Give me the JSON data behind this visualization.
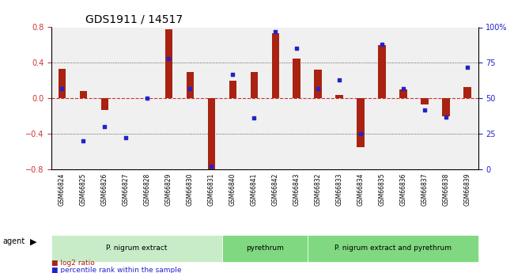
{
  "title": "GDS1911 / 14517",
  "samples": [
    "GSM66824",
    "GSM66825",
    "GSM66826",
    "GSM66827",
    "GSM66828",
    "GSM66829",
    "GSM66830",
    "GSM66831",
    "GSM66840",
    "GSM66841",
    "GSM66842",
    "GSM66843",
    "GSM66832",
    "GSM66833",
    "GSM66834",
    "GSM66835",
    "GSM66836",
    "GSM66837",
    "GSM66838",
    "GSM66839"
  ],
  "log2_ratio": [
    0.33,
    0.08,
    -0.13,
    0.0,
    0.0,
    0.78,
    0.3,
    -0.85,
    0.2,
    0.3,
    0.73,
    0.45,
    0.32,
    0.04,
    -0.55,
    0.6,
    0.1,
    -0.07,
    -0.2,
    0.13
  ],
  "percentile": [
    57,
    20,
    30,
    22,
    50,
    78,
    57,
    2,
    67,
    36,
    97,
    85,
    57,
    63,
    25,
    88,
    57,
    42,
    37,
    72
  ],
  "groups": [
    {
      "label": "P. nigrum extract",
      "start": 0,
      "end": 8,
      "color": "#b3e6b3"
    },
    {
      "label": "pyrethrum",
      "start": 8,
      "end": 12,
      "color": "#80d980"
    },
    {
      "label": "P. nigrum extract and pyrethrum",
      "start": 12,
      "end": 20,
      "color": "#80d980"
    }
  ],
  "ylim_left": [
    -0.8,
    0.8
  ],
  "ylim_right": [
    0,
    100
  ],
  "bar_color": "#aa2211",
  "dot_color": "#2222cc",
  "zero_line_color": "#cc3333",
  "dotted_line_color": "#333333",
  "background_color": "#ffffff",
  "plot_bg_color": "#f0f0f0",
  "tick_color_left": "#cc3333",
  "tick_color_right": "#2222cc"
}
